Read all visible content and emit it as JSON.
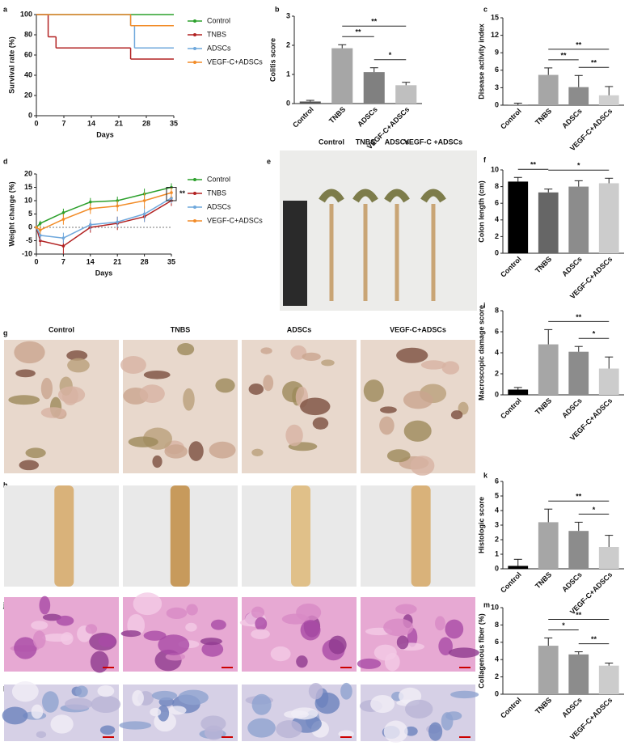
{
  "chart_data": [
    {
      "panel": "a",
      "type": "line",
      "step": true,
      "xlabel": "Days",
      "ylabel": "Survival rate (%)",
      "xlim": [
        0,
        35
      ],
      "xticks": [
        0,
        7,
        14,
        21,
        28,
        35
      ],
      "ylim": [
        0,
        100
      ],
      "yticks": [
        0,
        20,
        40,
        60,
        80,
        100
      ],
      "legend": "right",
      "series": [
        {
          "name": "Control",
          "color": "#2ca02c",
          "x": [
            0,
            35
          ],
          "values": [
            100,
            100
          ]
        },
        {
          "name": "TNBS",
          "color": "#b22222",
          "x": [
            0,
            3,
            5,
            24,
            35
          ],
          "values": [
            100,
            78,
            67,
            56,
            56
          ]
        },
        {
          "name": "ADSCs",
          "color": "#6fa8dc",
          "x": [
            0,
            24,
            25,
            35
          ],
          "values": [
            100,
            89,
            67,
            67
          ]
        },
        {
          "name": "VEGF-C+ADSCs",
          "color": "#f28c28",
          "x": [
            0,
            24,
            35
          ],
          "values": [
            100,
            89,
            89
          ]
        }
      ]
    },
    {
      "panel": "b",
      "type": "bar",
      "ylabel": "Colitis score",
      "categories": [
        "Control",
        "TNBS",
        "ADSCs",
        "VEGF-C+ADSCs"
      ],
      "values": [
        0.07,
        1.9,
        1.08,
        0.63
      ],
      "errors": [
        0.04,
        0.12,
        0.15,
        0.1
      ],
      "colors": [
        "#555555",
        "#a6a6a6",
        "#808080",
        "#bfbfbf"
      ],
      "ylim": [
        0,
        3
      ],
      "yticks": [
        0,
        1,
        2,
        3
      ],
      "significance": [
        {
          "groups": [
            "TNBS",
            "ADSCs"
          ],
          "label": "**"
        },
        {
          "groups": [
            "ADSCs",
            "VEGF-C+ADSCs"
          ],
          "label": "*"
        },
        {
          "groups": [
            "TNBS",
            "VEGF-C+ADSCs"
          ],
          "label": "**"
        }
      ]
    },
    {
      "panel": "c",
      "type": "bar",
      "ylabel": "Disease activity index",
      "categories": [
        "Control",
        "TNBS",
        "ADSCs",
        "VEGF-C+ADSCs"
      ],
      "values": [
        0.05,
        5.2,
        3.1,
        1.7
      ],
      "errors": [
        0.3,
        1.2,
        2,
        1.5
      ],
      "colors": [
        "#555555",
        "#a6a6a6",
        "#8c8c8c",
        "#d0d0d0"
      ],
      "ylim": [
        0,
        15
      ],
      "yticks": [
        0,
        3,
        6,
        9,
        12,
        15
      ],
      "significance": [
        {
          "groups": [
            "TNBS",
            "ADSCs"
          ],
          "label": "**"
        },
        {
          "groups": [
            "ADSCs",
            "VEGF-C+ADSCs"
          ],
          "label": "**"
        },
        {
          "groups": [
            "TNBS",
            "VEGF-C+ADSCs"
          ],
          "label": "**"
        }
      ]
    },
    {
      "panel": "d",
      "type": "line",
      "zero_line": true,
      "annotation": "**",
      "xlabel": "Days",
      "ylabel": "Weight change (%)",
      "xlim": [
        0,
        35
      ],
      "xticks": [
        0,
        7,
        14,
        21,
        28,
        35
      ],
      "ylim": [
        -10,
        20
      ],
      "yticks": [
        -10,
        -5,
        0,
        5,
        10,
        15,
        20
      ],
      "legend": "right",
      "series": [
        {
          "name": "Control",
          "color": "#2ca02c",
          "x": [
            0,
            1,
            7,
            14,
            21,
            28,
            35
          ],
          "values": [
            0,
            1.5,
            5.5,
            9.5,
            10,
            12.5,
            15
          ],
          "errors": [
            0.5,
            1,
            1.5,
            1.5,
            1.5,
            2,
            1.5
          ]
        },
        {
          "name": "TNBS",
          "color": "#b22222",
          "x": [
            0,
            1,
            7,
            14,
            21,
            28,
            35
          ],
          "values": [
            0,
            -5,
            -7,
            0,
            1.5,
            4,
            10
          ],
          "errors": [
            0.5,
            2,
            3,
            2,
            2.5,
            2,
            2
          ]
        },
        {
          "name": "ADSCs",
          "color": "#6fa8dc",
          "x": [
            0,
            1,
            7,
            14,
            21,
            28,
            35
          ],
          "values": [
            0,
            -3,
            -4,
            1,
            2,
            5,
            11
          ],
          "errors": [
            0.5,
            2,
            2,
            2,
            2,
            3,
            2
          ]
        },
        {
          "name": "VEGF-C+ADSCs",
          "color": "#f28c28",
          "x": [
            0,
            1,
            7,
            14,
            21,
            28,
            35
          ],
          "values": [
            0,
            -1,
            3,
            7,
            8,
            10,
            13
          ],
          "errors": [
            0.5,
            1.5,
            2,
            2,
            2,
            3,
            2
          ]
        }
      ]
    },
    {
      "panel": "f",
      "type": "bar",
      "ylabel": "Colon length (cm)",
      "categories": [
        "Control",
        "TNBS",
        "ADSCs",
        "VEGF-C+ADSCs"
      ],
      "values": [
        8.6,
        7.3,
        8.0,
        8.4
      ],
      "errors": [
        0.5,
        0.4,
        0.7,
        0.6
      ],
      "colors": [
        "#000000",
        "#666666",
        "#8c8c8c",
        "#cccccc"
      ],
      "ylim": [
        0,
        10
      ],
      "yticks": [
        0,
        2,
        4,
        6,
        8,
        10
      ],
      "significance": [
        {
          "groups": [
            "Control",
            "TNBS"
          ],
          "label": "**"
        },
        {
          "groups": [
            "TNBS",
            "VEGF-C+ADSCs"
          ],
          "label": "*"
        }
      ]
    },
    {
      "panel": "i",
      "type": "bar",
      "ylabel": "Macroscopic damage score",
      "categories": [
        "Control",
        "TNBS",
        "ADSCs",
        "VEGF-C+ADSCs"
      ],
      "values": [
        0.5,
        4.8,
        4.1,
        2.5
      ],
      "errors": [
        0.2,
        1.4,
        0.5,
        1.1
      ],
      "colors": [
        "#000000",
        "#a6a6a6",
        "#8c8c8c",
        "#cccccc"
      ],
      "ylim": [
        0,
        8
      ],
      "yticks": [
        0,
        2,
        4,
        6,
        8
      ],
      "significance": [
        {
          "groups": [
            "ADSCs",
            "VEGF-C+ADSCs"
          ],
          "label": "*"
        },
        {
          "groups": [
            "TNBS",
            "VEGF-C+ADSCs"
          ],
          "label": "**"
        }
      ]
    },
    {
      "panel": "k",
      "type": "bar",
      "ylabel": "Histologic score",
      "categories": [
        "Control",
        "TNBS",
        "ADSCs",
        "VEGF-C+ADSCs"
      ],
      "values": [
        0.2,
        3.2,
        2.6,
        1.5
      ],
      "errors": [
        0.45,
        0.9,
        0.6,
        0.8
      ],
      "colors": [
        "#000000",
        "#a6a6a6",
        "#8c8c8c",
        "#cccccc"
      ],
      "ylim": [
        0,
        6
      ],
      "yticks": [
        0,
        1,
        2,
        3,
        4,
        5,
        6
      ],
      "significance": [
        {
          "groups": [
            "ADSCs",
            "VEGF-C+ADSCs"
          ],
          "label": "*"
        },
        {
          "groups": [
            "TNBS",
            "VEGF-C+ADSCs"
          ],
          "label": "**"
        }
      ]
    },
    {
      "panel": "m",
      "type": "bar",
      "ylabel": "Collagenous fiber (%)",
      "categories": [
        "Control",
        "TNBS",
        "ADSCs",
        "VEGF-C+ADSCs"
      ],
      "values": [
        0,
        5.6,
        4.6,
        3.3
      ],
      "errors": [
        0,
        0.9,
        0.3,
        0.3
      ],
      "colors": [
        "#000000",
        "#a6a6a6",
        "#8c8c8c",
        "#cccccc"
      ],
      "ylim": [
        0,
        10
      ],
      "yticks": [
        0,
        2,
        4,
        6,
        8,
        10
      ],
      "significance": [
        {
          "groups": [
            "TNBS",
            "ADSCs"
          ],
          "label": "*"
        },
        {
          "groups": [
            "ADSCs",
            "VEGF-C+ADSCs"
          ],
          "label": "**"
        },
        {
          "groups": [
            "TNBS",
            "VEGF-C+ADSCs"
          ],
          "label": "**"
        }
      ]
    }
  ],
  "figure_panels": [
    {
      "panel": "e",
      "labels": [
        "Control",
        "TNBS",
        "ADSCs",
        "VEGF-C +ADSCs"
      ]
    },
    {
      "panel": "g",
      "labels": [
        "Control",
        "TNBS",
        "ADSCs",
        "VEGF-C+ADSCs"
      ]
    },
    {
      "panel": "h"
    },
    {
      "panel": "j"
    },
    {
      "panel": "l"
    }
  ]
}
